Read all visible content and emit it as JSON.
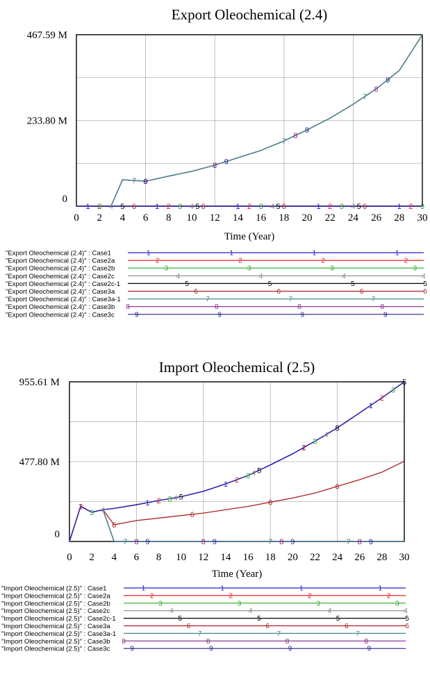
{
  "colors": {
    "Case1": "#2222cc",
    "Case2a": "#dd2222",
    "Case2b": "#22aa22",
    "Case2c": "#888888",
    "Case2c-1": "#000000",
    "Case3a": "#aa2222",
    "Case3a-1": "#448888",
    "Case3b": "#882288",
    "Case3c": "#222288"
  },
  "chart_data": [
    {
      "type": "line",
      "title": "Export Oleochemical (2.4)",
      "xlabel": "Time (Year)",
      "ylabel": "",
      "xlim": [
        0,
        30
      ],
      "ylim": [
        0,
        467.59
      ],
      "xticks": [
        "0",
        "2",
        "4",
        "6",
        "8",
        "10",
        "12",
        "14",
        "16",
        "18",
        "20",
        "22",
        "24",
        "26",
        "28",
        "30"
      ],
      "ytick_labels": [
        "467.59 M",
        "233.80 M",
        "0"
      ],
      "ytick_values": [
        467.59,
        233.8,
        0
      ],
      "grid": true,
      "legend_position": "bottom",
      "series": [
        {
          "name": "\"Export Oleochemical (2.4)\" : Case1",
          "key": "Case1",
          "marker": "1",
          "x": [
            0,
            30
          ],
          "y": [
            0,
            0
          ],
          "markers_x": [
            1,
            7,
            14,
            21,
            28
          ],
          "legend_markers": [
            0.07,
            0.35,
            0.63,
            0.91
          ]
        },
        {
          "name": "\"Export Oleochemical (2.4)\" : Case2a",
          "key": "Case2a",
          "marker": "2",
          "x": [
            0,
            30
          ],
          "y": [
            0,
            0
          ],
          "markers_x": [
            2,
            8,
            15,
            22,
            29
          ],
          "legend_markers": [
            0.1,
            0.38,
            0.66,
            0.94
          ]
        },
        {
          "name": "\"Export Oleochemical (2.4)\" : Case2b",
          "key": "Case2b",
          "marker": "3",
          "x": [
            0,
            30
          ],
          "y": [
            0,
            0
          ],
          "markers_x": [
            2,
            9,
            16,
            23,
            30
          ],
          "legend_markers": [
            0.13,
            0.41,
            0.69,
            0.97
          ]
        },
        {
          "name": "\"Export Oleochemical (2.4)\" : Case2c",
          "key": "Case2c",
          "marker": "4",
          "x": [
            0,
            30
          ],
          "y": [
            0,
            0
          ],
          "markers_x": [
            3,
            10,
            17,
            24
          ],
          "legend_markers": [
            0.17,
            0.45,
            0.73,
            1.0
          ]
        },
        {
          "name": "\"Export Oleochemical (2.4)\" : Case2c-1",
          "key": "Case2c-1",
          "marker": "5",
          "x": [
            0,
            30
          ],
          "y": [
            0,
            0
          ],
          "markers_x": [
            4,
            10.5,
            17.5,
            24.5
          ],
          "legend_markers": [
            0.2,
            0.48,
            0.76,
            1.02
          ]
        },
        {
          "name": "\"Export Oleochemical (2.4)\" : Case3a",
          "key": "Case3a",
          "marker": "6",
          "x": [
            0,
            30
          ],
          "y": [
            0,
            0
          ],
          "markers_x": [
            5,
            11,
            18,
            25
          ],
          "legend_markers": [
            0.23,
            0.51,
            0.79,
            1.05
          ]
        },
        {
          "name": "\"Export Oleochemical (2.4)\" : Case3a-1",
          "key": "Case3a-1",
          "marker": "7",
          "x": [
            0,
            2,
            3,
            4,
            6,
            8,
            10,
            12,
            14,
            16,
            18,
            20,
            22,
            24,
            26,
            28,
            30
          ],
          "y": [
            0,
            0,
            0,
            72,
            68,
            82,
            95,
            112,
            132,
            152,
            178,
            208,
            240,
            278,
            320,
            370,
            467.59
          ],
          "markers_x": [
            5,
            12,
            18,
            25
          ],
          "legend_markers": [
            0.27,
            0.55,
            0.83
          ]
        },
        {
          "name": "\"Export Oleochemical (2.4)\" : Case3b",
          "key": "Case3b",
          "marker": "8",
          "x": [
            0,
            2,
            3,
            4,
            6,
            8,
            10,
            12,
            14,
            16,
            18,
            20,
            22,
            24,
            26,
            28,
            30
          ],
          "y": [
            0,
            0,
            0,
            72,
            68,
            82,
            95,
            112,
            132,
            152,
            178,
            208,
            240,
            278,
            320,
            370,
            467.59
          ],
          "markers_x": [
            6,
            12,
            19,
            26
          ],
          "legend_markers": [
            0.0,
            0.3,
            0.58,
            0.86
          ]
        },
        {
          "name": "\"Export Oleochemical (2.4)\" : Case3c",
          "key": "Case3c",
          "marker": "9",
          "x": [
            0,
            2,
            3,
            4,
            6,
            8,
            10,
            12,
            14,
            16,
            18,
            20,
            22,
            24,
            26,
            28,
            30
          ],
          "y": [
            0,
            0,
            0,
            72,
            68,
            82,
            95,
            112,
            132,
            152,
            178,
            208,
            240,
            278,
            320,
            370,
            467.59
          ],
          "markers_x": [
            6,
            13,
            20,
            27
          ],
          "legend_markers": [
            0.03,
            0.31,
            0.59,
            0.87
          ]
        }
      ]
    },
    {
      "type": "line",
      "title": "Import Oleochemical (2.5)",
      "xlabel": "Time (Year)",
      "ylabel": "",
      "xlim": [
        0,
        30
      ],
      "ylim": [
        0,
        955.61
      ],
      "xticks": [
        "0",
        "2",
        "4",
        "6",
        "8",
        "10",
        "12",
        "14",
        "16",
        "18",
        "20",
        "22",
        "24",
        "26",
        "28",
        "30"
      ],
      "ytick_labels": [
        "955.61 M",
        "477.80 M",
        "0"
      ],
      "ytick_values": [
        955.61,
        477.8,
        0
      ],
      "grid": true,
      "legend_position": "bottom",
      "series": [
        {
          "name": "\"Import Oleochemical (2.5)\" : Case1",
          "key": "Case1",
          "marker": "1",
          "x": [
            0,
            1,
            2,
            3,
            4,
            6,
            8,
            10,
            12,
            14,
            16,
            18,
            20,
            22,
            24,
            26,
            28,
            30
          ],
          "y": [
            0,
            210,
            175,
            190,
            198,
            220,
            245,
            268,
            300,
            345,
            395,
            458,
            525,
            600,
            680,
            770,
            860,
            955.61
          ],
          "markers_x": [
            1,
            7,
            14,
            21,
            27
          ],
          "legend_markers": [
            0.07,
            0.35,
            0.63,
            0.91
          ]
        },
        {
          "name": "\"Import Oleochemical (2.5)\" : Case2a",
          "key": "Case2a",
          "marker": "2",
          "x": [
            0,
            1,
            2,
            3,
            4,
            6,
            8,
            10,
            12,
            14,
            16,
            18,
            20,
            22,
            24,
            26,
            28,
            30
          ],
          "y": [
            0,
            210,
            175,
            190,
            198,
            220,
            245,
            268,
            300,
            345,
            395,
            458,
            525,
            600,
            680,
            770,
            860,
            955.61
          ],
          "markers_x": [
            1,
            8,
            15,
            21,
            28
          ],
          "legend_markers": [
            0.1,
            0.38,
            0.66,
            0.94
          ]
        },
        {
          "name": "\"Import Oleochemical (2.5)\" : Case2b",
          "key": "Case2b",
          "marker": "3",
          "x": [
            0,
            1,
            2,
            3,
            4,
            6,
            8,
            10,
            12,
            14,
            16,
            18,
            20,
            22,
            24,
            26,
            28,
            30
          ],
          "y": [
            0,
            210,
            175,
            190,
            198,
            220,
            245,
            268,
            300,
            345,
            395,
            458,
            525,
            600,
            680,
            770,
            860,
            955.61
          ],
          "markers_x": [
            2,
            9,
            16,
            22,
            29
          ],
          "legend_markers": [
            0.13,
            0.41,
            0.69,
            0.97
          ]
        },
        {
          "name": "\"Import Oleochemical (2.5)\" : Case2c",
          "key": "Case2c",
          "marker": "4",
          "x": [
            0,
            1,
            2,
            3,
            4,
            6,
            8,
            10,
            12,
            14,
            16,
            18,
            20,
            22,
            24,
            26,
            28,
            30
          ],
          "y": [
            0,
            210,
            175,
            190,
            198,
            220,
            245,
            268,
            300,
            345,
            395,
            458,
            525,
            600,
            680,
            770,
            860,
            955.61
          ],
          "markers_x": [
            3,
            9.5,
            16.5,
            23
          ],
          "legend_markers": [
            0.17,
            0.45,
            0.73,
            1.0
          ]
        },
        {
          "name": "\"Import Oleochemical (2.5)\" : Case2c-1",
          "key": "Case2c-1",
          "marker": "5",
          "x": [
            0,
            1,
            2,
            3,
            4,
            6,
            8,
            10,
            12,
            14,
            16,
            18,
            20,
            22,
            24,
            26,
            28,
            30
          ],
          "y": [
            0,
            210,
            175,
            190,
            198,
            220,
            245,
            268,
            300,
            345,
            395,
            458,
            525,
            600,
            680,
            770,
            860,
            955.61
          ],
          "markers_x": [
            10,
            17,
            24,
            30
          ],
          "legend_markers": [
            0.2,
            0.48,
            0.76,
            1.02
          ]
        },
        {
          "name": "\"Import Oleochemical (2.5)\" : Case3a",
          "key": "Case3a",
          "marker": "6",
          "x": [
            0,
            1,
            2,
            3,
            4,
            6,
            8,
            10,
            12,
            14,
            16,
            18,
            20,
            22,
            24,
            26,
            28,
            30
          ],
          "y": [
            0,
            210,
            175,
            190,
            100,
            125,
            140,
            155,
            170,
            190,
            210,
            235,
            260,
            290,
            330,
            370,
            415,
            480
          ],
          "markers_x": [
            4,
            11,
            18,
            24
          ],
          "legend_markers": [
            0.23,
            0.51,
            0.79,
            1.05
          ]
        },
        {
          "name": "\"Import Oleochemical (2.5)\" : Case3a-1",
          "key": "Case3a-1",
          "marker": "7",
          "x": [
            0,
            1,
            2,
            3,
            4,
            30
          ],
          "y": [
            0,
            210,
            175,
            190,
            0,
            0
          ],
          "markers_x": [
            5,
            18,
            25
          ],
          "legend_markers": [
            0.27,
            0.55,
            0.83
          ]
        },
        {
          "name": "\"Import Oleochemical (2.5)\" : Case3b",
          "key": "Case3b",
          "marker": "8",
          "x": [
            0,
            1,
            2,
            3,
            4,
            30
          ],
          "y": [
            0,
            210,
            175,
            190,
            0,
            0
          ],
          "markers_x": [
            6,
            12,
            19,
            26
          ],
          "legend_markers": [
            0.0,
            0.3,
            0.58,
            0.86
          ]
        },
        {
          "name": "\"Import Oleochemical (2.5)\" : Case3c",
          "key": "Case3c",
          "marker": "9",
          "x": [
            0,
            1,
            2,
            3,
            4,
            30
          ],
          "y": [
            0,
            210,
            175,
            190,
            0,
            0
          ],
          "markers_x": [
            7,
            13,
            20,
            27
          ],
          "legend_markers": [
            0.03,
            0.31,
            0.59,
            0.87
          ]
        }
      ]
    }
  ]
}
